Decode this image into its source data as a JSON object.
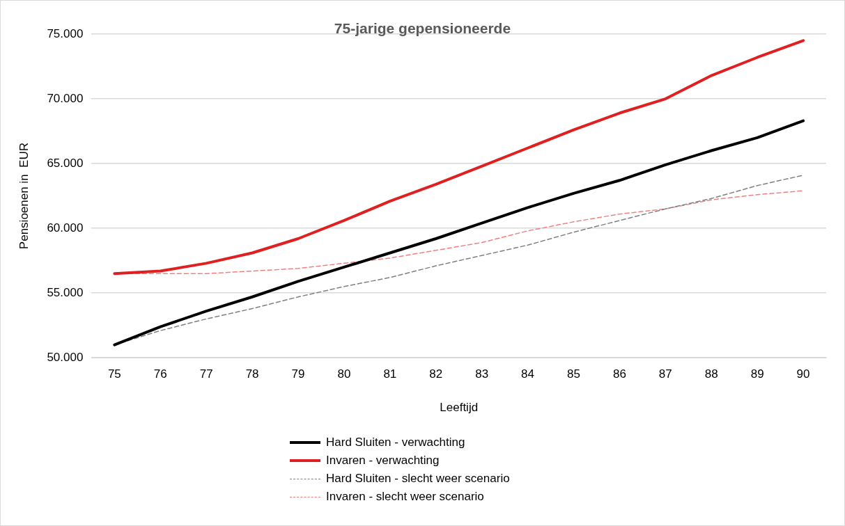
{
  "chart_data": {
    "type": "line",
    "title": "75-jarige gepensioneerde",
    "xlabel": "Leeftijd",
    "ylabel": "Pensioenen in  EUR",
    "categories": [
      "75",
      "76",
      "77",
      "78",
      "79",
      "80",
      "81",
      "82",
      "83",
      "84",
      "85",
      "86",
      "87",
      "88",
      "89",
      "90"
    ],
    "ylim": [
      50000,
      75000
    ],
    "yticks": [
      {
        "value": 50000,
        "label": "50.000"
      },
      {
        "value": 55000,
        "label": "55.000"
      },
      {
        "value": 60000,
        "label": "60.000"
      },
      {
        "value": 65000,
        "label": "65.000"
      },
      {
        "value": 70000,
        "label": "70.000"
      },
      {
        "value": 75000,
        "label": "75.000"
      }
    ],
    "grid": "y",
    "legend": "bottom",
    "marker": "none",
    "series": [
      {
        "name": "Hard Sluiten - verwachting",
        "color": "#000000",
        "line_style": "solid",
        "values": [
          51000,
          52400,
          53600,
          54700,
          55900,
          57000,
          58100,
          59200,
          60400,
          61600,
          62700,
          63700,
          64900,
          66000,
          67000,
          68300
        ]
      },
      {
        "name": "Invaren - verwachting",
        "color": "#e02020",
        "line_style": "solid",
        "values": [
          56500,
          56700,
          57300,
          58100,
          59200,
          60600,
          62100,
          63400,
          64800,
          66200,
          67600,
          68900,
          70000,
          71800,
          73200,
          74500
        ]
      },
      {
        "name": "Hard Sluiten - slecht weer scenario",
        "color": "#7f7f7f",
        "line_style": "dashed",
        "values": [
          51000,
          52100,
          53000,
          53800,
          54700,
          55500,
          56200,
          57100,
          57900,
          58700,
          59700,
          60600,
          61500,
          62300,
          63300,
          64100
        ]
      },
      {
        "name": "Invaren - slecht weer scenario",
        "color": "#f08080",
        "line_style": "dashed",
        "values": [
          56500,
          56500,
          56500,
          56700,
          56900,
          57300,
          57700,
          58300,
          58900,
          59800,
          60500,
          61100,
          61500,
          62200,
          62600,
          62900
        ]
      }
    ]
  }
}
